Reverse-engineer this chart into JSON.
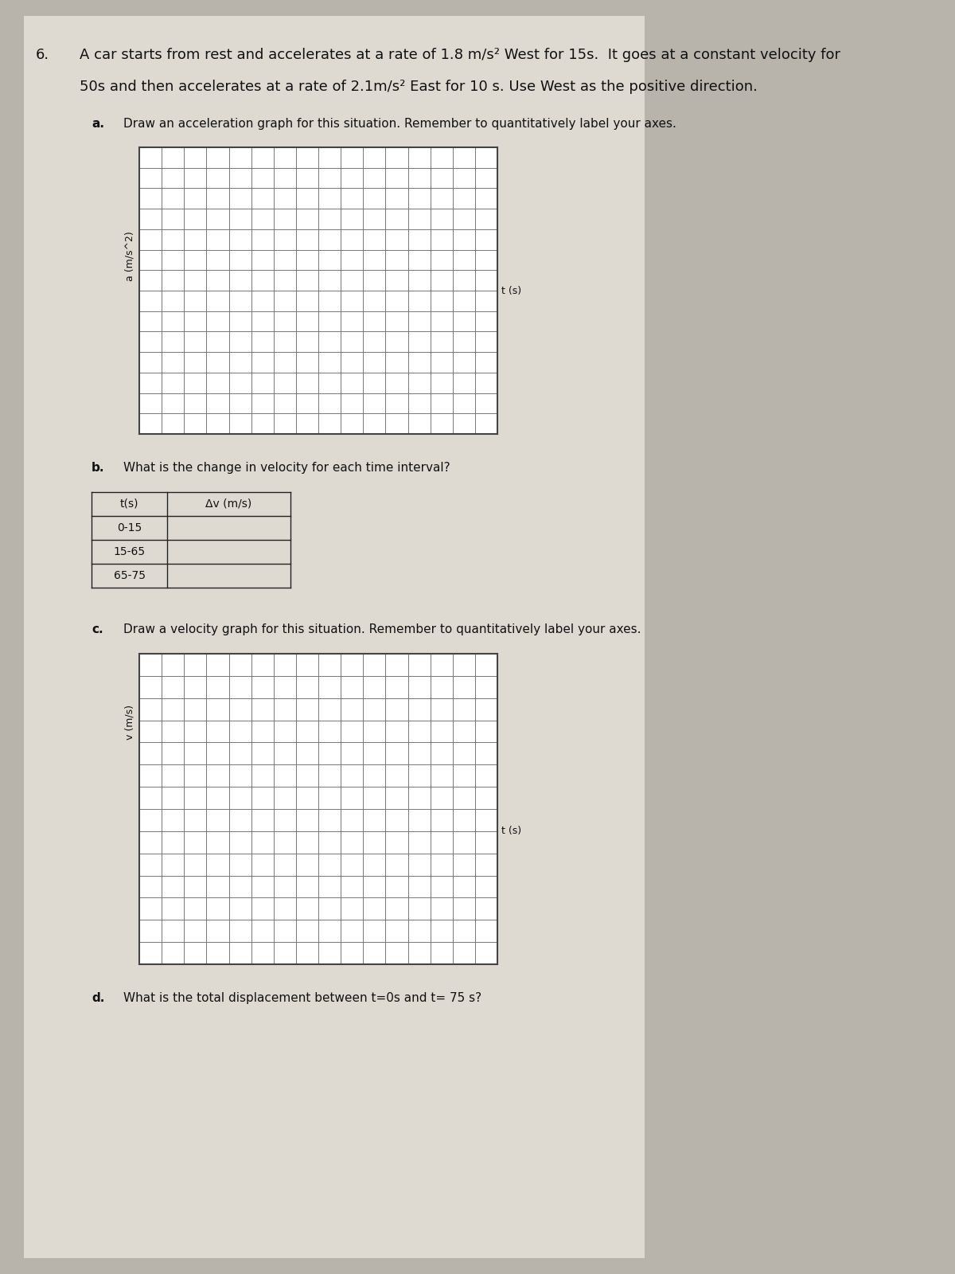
{
  "title_number": "6.",
  "problem_text_line1": "A car starts from rest and accelerates at a rate of 1.8 m/s² West for 15s.  It goes at a constant velocity for",
  "problem_text_line2": "50s and then accelerates at a rate of 2.1m/s² East for 10 s. Use West as the positive direction.",
  "part_a_label": "a.",
  "part_a_text": "Draw an acceleration graph for this situation. Remember to quantitatively label your axes.",
  "accel_ylabel": "a (m/s^2)",
  "accel_xlabel": "t (s)",
  "part_b_label": "b.",
  "part_b_text": "What is the change in velocity for each time interval?",
  "table_col1": "t(s)",
  "table_col2": "Δv (m/s)",
  "table_rows": [
    "0-15",
    "15-65",
    "65-75"
  ],
  "part_c_label": "c.",
  "part_c_text": "Draw a velocity graph for this situation. Remember to quantitatively label your axes.",
  "vel_ylabel": "v (m/s)",
  "vel_xlabel": "t (s)",
  "part_d_label": "d.",
  "part_d_text": "What is the total displacement between t=0s and t= 75 s?",
  "grid_nrows": 14,
  "grid_ncols": 16,
  "bg_color": "#b8b4ac",
  "paper_color": "#dedad2",
  "grid_line_color": "#777777",
  "grid_border_color": "#444444",
  "text_color": "#111111",
  "table_border_color": "#222222",
  "font_size_problem": 13,
  "font_size_part": 11,
  "font_size_axis_label": 9,
  "font_size_table": 10
}
